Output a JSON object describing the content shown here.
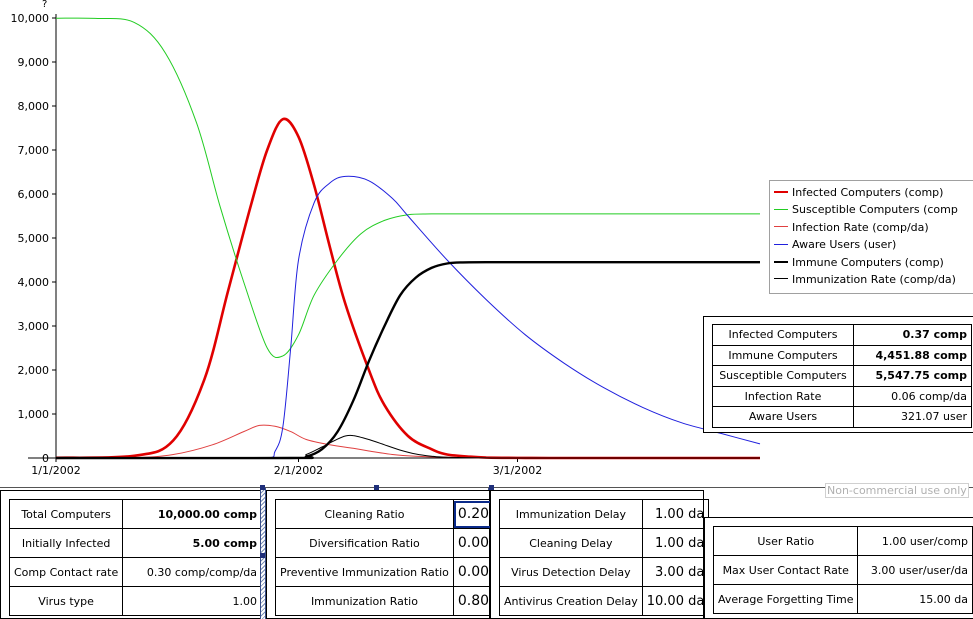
{
  "chart_data": {
    "type": "line",
    "y_unit_label": "?",
    "ylim": [
      0,
      10000
    ],
    "y_ticks": [
      "0",
      "1,000",
      "2,000",
      "3,000",
      "4,000",
      "5,000",
      "6,000",
      "7,000",
      "8,000",
      "9,000",
      "10,000"
    ],
    "x_ticks": [
      "1/1/2002",
      "2/1/2002",
      "3/1/2002"
    ],
    "xlim_days": [
      0,
      90
    ],
    "grid": false,
    "legend_position": "right",
    "series": [
      {
        "name": "Infected Computers (comp)",
        "color": "#e00000",
        "width": 2.6,
        "x": [
          0,
          10,
          15,
          19,
          22,
          25,
          27,
          29,
          31,
          33,
          35,
          37,
          40,
          42,
          45,
          48,
          50,
          53,
          55,
          57,
          60,
          63,
          70,
          80,
          90
        ],
        "y": [
          5,
          50,
          400,
          1800,
          3800,
          5800,
          7000,
          7700,
          7300,
          6200,
          4800,
          3500,
          2000,
          1200,
          500,
          200,
          80,
          30,
          10,
          5,
          2,
          1,
          0.5,
          0.4,
          0.37
        ]
      },
      {
        "name": "Susceptible Computers (comp",
        "color": "#22cc22",
        "width": 1,
        "x": [
          0,
          5,
          10,
          14,
          18,
          21,
          24,
          27,
          29,
          31,
          33,
          36,
          39,
          42,
          45,
          48,
          52,
          60,
          70,
          80,
          90
        ],
        "y": [
          9995,
          9990,
          9900,
          9200,
          7600,
          5700,
          4000,
          2500,
          2320,
          2800,
          3700,
          4500,
          5100,
          5400,
          5530,
          5547,
          5548,
          5548,
          5548,
          5548,
          5548
        ]
      },
      {
        "name": "Infection Rate (comp/da)",
        "color": "#e04040",
        "width": 1,
        "x": [
          0,
          10,
          15,
          20,
          24,
          26,
          28,
          30,
          32,
          35,
          38,
          40,
          43,
          46,
          50,
          55,
          60,
          70,
          80,
          90
        ],
        "y": [
          0,
          10,
          80,
          300,
          600,
          740,
          720,
          600,
          420,
          300,
          220,
          160,
          80,
          40,
          15,
          5,
          2,
          0.5,
          0.1,
          0.06
        ]
      },
      {
        "name": "Aware Users (user)",
        "color": "#2020dd",
        "width": 1,
        "x": [
          0,
          20,
          27,
          28,
          29,
          30,
          31,
          33,
          35,
          37,
          40,
          43,
          45,
          50,
          55,
          60,
          65,
          70,
          75,
          80,
          85,
          90
        ],
        "y": [
          0,
          0,
          0,
          150,
          700,
          2500,
          4500,
          5800,
          6250,
          6400,
          6300,
          5900,
          5500,
          4500,
          3600,
          2800,
          2150,
          1600,
          1150,
          800,
          560,
          321
        ]
      },
      {
        "name": "Immune Computers (comp)",
        "color": "#000000",
        "width": 2.4,
        "x": [
          0,
          30,
          32,
          34,
          36,
          38,
          40,
          42,
          44,
          46,
          48,
          50,
          52,
          55,
          60,
          70,
          80,
          90
        ],
        "y": [
          0,
          0,
          30,
          200,
          600,
          1300,
          2200,
          3000,
          3700,
          4100,
          4320,
          4420,
          4445,
          4450,
          4451,
          4451,
          4451,
          4451
        ]
      },
      {
        "name": "Immunization Rate (comp/da)",
        "color": "#000000",
        "width": 1,
        "x": [
          0,
          30,
          32,
          34,
          36,
          37,
          38,
          40,
          42,
          44,
          46,
          48,
          50,
          55,
          60,
          90
        ],
        "y": [
          0,
          0,
          80,
          250,
          430,
          500,
          510,
          420,
          300,
          180,
          90,
          40,
          15,
          2,
          0,
          0
        ]
      }
    ]
  },
  "summary": [
    {
      "label": "Infected Computers",
      "value": "0.37 comp",
      "bold": true
    },
    {
      "label": "Immune Computers",
      "value": "4,451.88 comp",
      "bold": true
    },
    {
      "label": "Susceptible Computers",
      "value": "5,547.75 comp",
      "bold": true
    },
    {
      "label": "Infection Rate",
      "value": "0.06 comp/da",
      "bold": false
    },
    {
      "label": "Aware Users",
      "value": "321.07 user",
      "bold": false
    }
  ],
  "watermark": "Non-commercial use only",
  "panel1": [
    {
      "label": "Total Computers",
      "value": "10,000.00 comp",
      "bold": true
    },
    {
      "label": "Initially Infected",
      "value": "5.00 comp",
      "bold": true
    },
    {
      "label": "Comp Contact rate",
      "value": "0.30 comp/comp/da",
      "bold": false
    },
    {
      "label": "Virus type",
      "value": "1.00",
      "bold": false
    }
  ],
  "panel2": [
    {
      "label": "Cleaning Ratio",
      "value": "0.20"
    },
    {
      "label": "Diversification Ratio",
      "value": "0.00"
    },
    {
      "label": "Preventive Immunization Ratio",
      "value": "0.00"
    },
    {
      "label": "Immunization Ratio",
      "value": "0.80"
    }
  ],
  "panel3": [
    {
      "label": "Immunization Delay",
      "value": "1.00 da"
    },
    {
      "label": "Cleaning Delay",
      "value": "1.00 da"
    },
    {
      "label": "Virus Detection Delay",
      "value": "3.00 da"
    },
    {
      "label": "Antivirus Creation Delay",
      "value": "10.00 da"
    }
  ],
  "panel4": [
    {
      "label": "User Ratio",
      "value": "1.00 user/comp"
    },
    {
      "label": "Max User Contact Rate",
      "value": "3.00 user/user/da"
    },
    {
      "label": "Average Forgetting Time",
      "value": "15.00 da"
    }
  ]
}
